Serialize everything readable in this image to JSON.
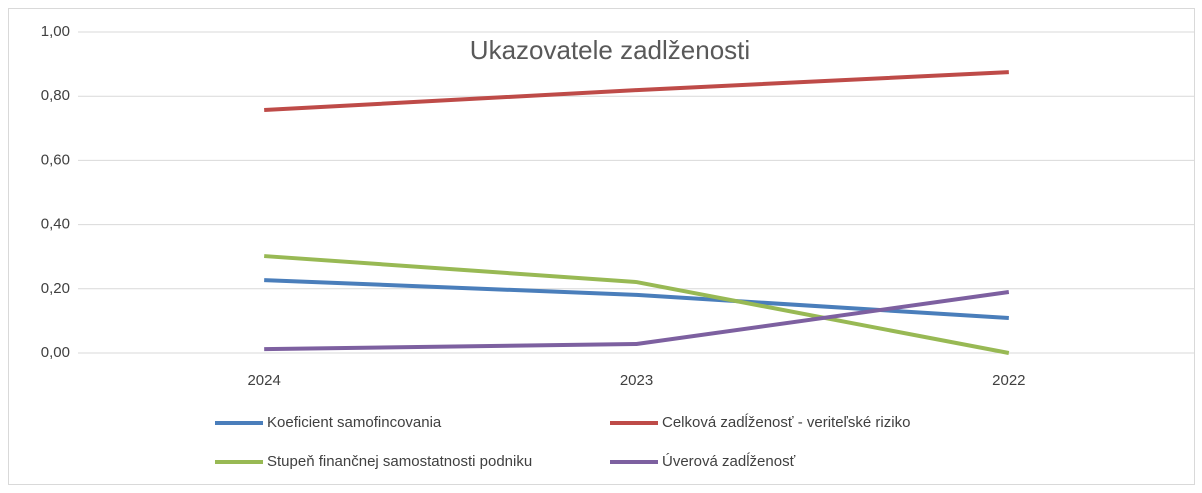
{
  "chart_data": {
    "type": "line",
    "title": "Ukazovatele zadlženosti",
    "categories": [
      "2024",
      "2023",
      "2022"
    ],
    "series": [
      {
        "name": "Koeficient samofincovania",
        "color": "#4a7ebb",
        "values": [
          0.227,
          0.181,
          0.109
        ]
      },
      {
        "name": "Celková zadĺženosť - veriteľské riziko",
        "color": "#be4b48",
        "values": [
          0.757,
          0.819,
          0.875
        ]
      },
      {
        "name": "Stupeň finančnej samostatnosti podniku",
        "color": "#98b954",
        "values": [
          0.302,
          0.221,
          0.0
        ]
      },
      {
        "name": "Úverová zadĺženosť",
        "color": "#7d60a0",
        "values": [
          0.012,
          0.028,
          0.19
        ]
      }
    ],
    "ylim": [
      0,
      1
    ],
    "yticks": [
      {
        "value": 0,
        "label": "0,00"
      },
      {
        "value": 0.2,
        "label": "0,20"
      },
      {
        "value": 0.4,
        "label": "0,40"
      },
      {
        "value": 0.6,
        "label": "0,60"
      },
      {
        "value": 0.8,
        "label": "0,80"
      },
      {
        "value": 1,
        "label": "1,00"
      }
    ],
    "grid": true
  }
}
